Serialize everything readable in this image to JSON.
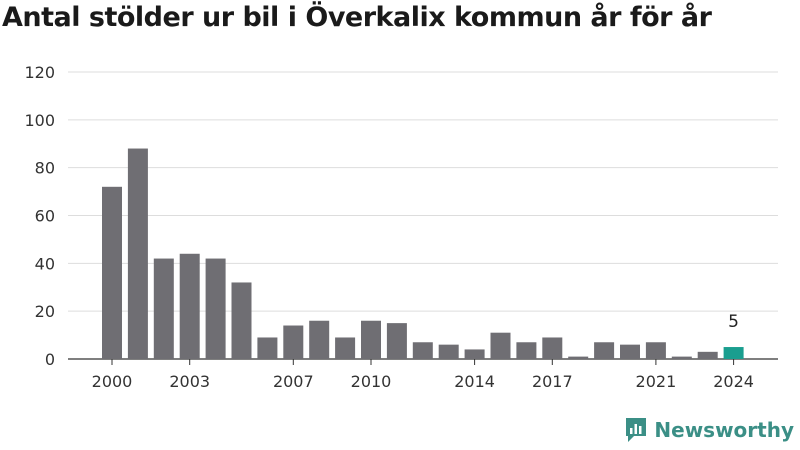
{
  "title": "Antal stölder ur bil i Överkalix kommun år för år",
  "brand": {
    "name": "Newsworthy",
    "color": "#3b8f86"
  },
  "colors": {
    "bar": "#6f6e73",
    "highlight": "#1a9e8f",
    "grid": "#dddddd"
  },
  "chart_data": {
    "type": "bar",
    "title": "Antal stölder ur bil i Överkalix kommun år för år",
    "xlabel": "",
    "ylabel": "",
    "categories": [
      "2000",
      "2001",
      "2002",
      "2003",
      "2004",
      "2005",
      "2006",
      "2007",
      "2008",
      "2009",
      "2010",
      "2011",
      "2012",
      "2013",
      "2014",
      "2015",
      "2016",
      "2017",
      "2018",
      "2019",
      "2020",
      "2021",
      "2022",
      "2023",
      "2024"
    ],
    "values": [
      72,
      88,
      42,
      44,
      42,
      32,
      9,
      14,
      16,
      9,
      16,
      15,
      7,
      6,
      4,
      11,
      7,
      9,
      1,
      7,
      6,
      7,
      1,
      3,
      5
    ],
    "xtick_labels": [
      "2000",
      "2003",
      "2007",
      "2010",
      "2014",
      "2017",
      "2021",
      "2024"
    ],
    "yticks": [
      0,
      20,
      40,
      60,
      80,
      100,
      120
    ],
    "ylim": [
      0,
      120
    ],
    "grid": true,
    "highlight_index": 24,
    "annotation": "5"
  }
}
